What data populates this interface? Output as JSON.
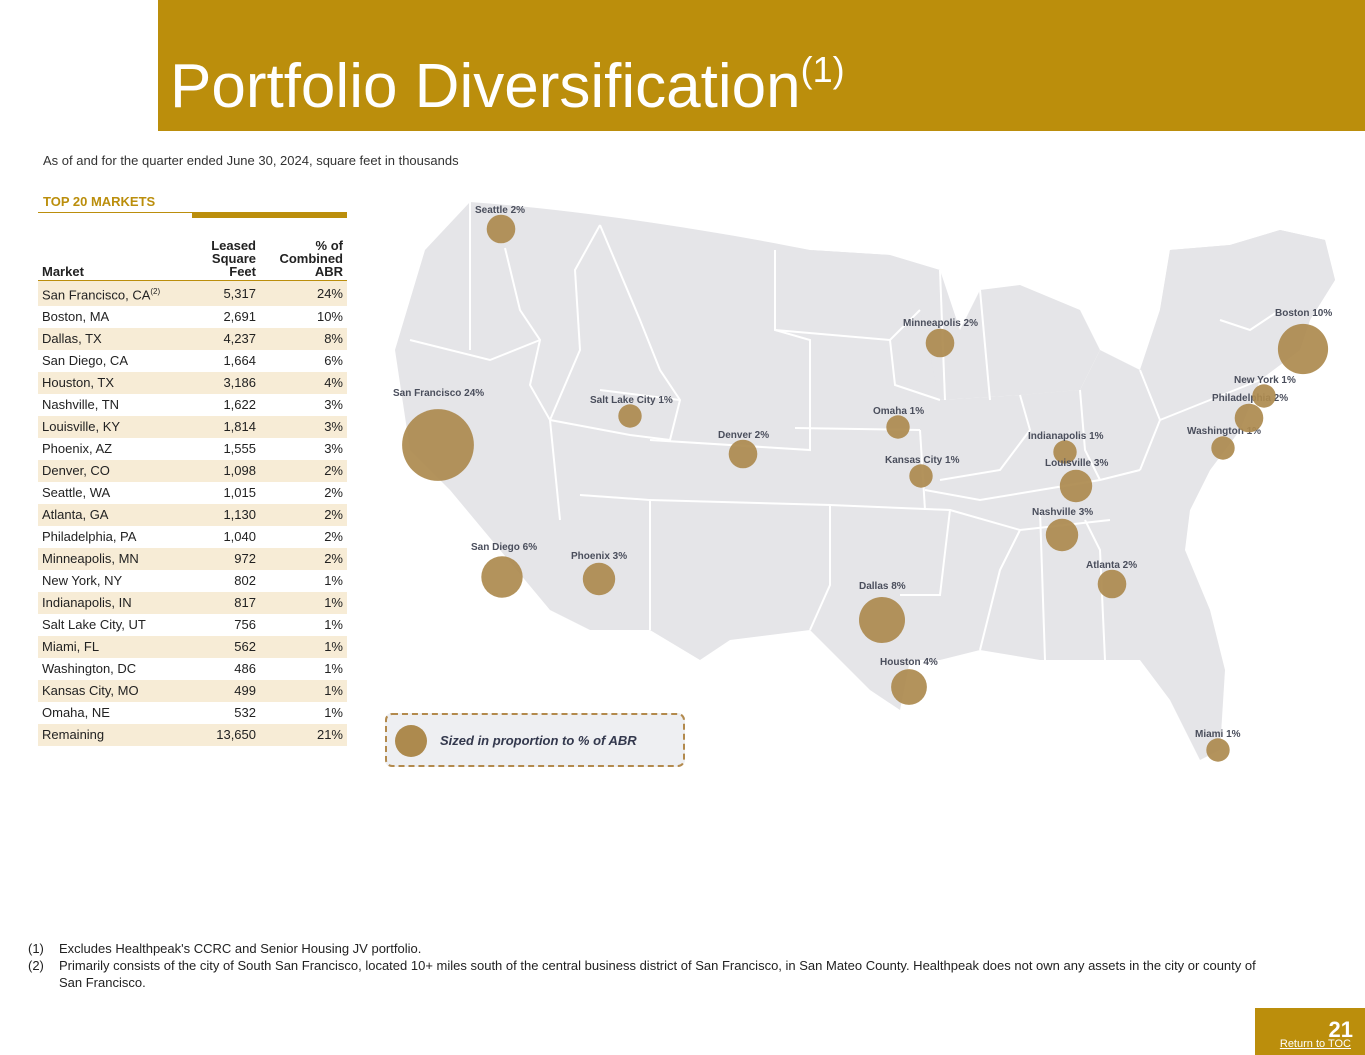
{
  "header": {
    "title": "Portfolio Diversification",
    "title_sup": "(1)"
  },
  "subtitle": "As of and for the quarter ended June 30, 2024, square feet in thousands",
  "table": {
    "heading": "TOP 20 MARKETS",
    "columns": {
      "market": "Market",
      "sqft": "Leased Square Feet",
      "abr": "% of Combined ABR"
    },
    "rows": [
      {
        "market": "San Francisco, CA",
        "note": "(2)",
        "sqft": "5,317",
        "abr": "24%"
      },
      {
        "market": "Boston, MA",
        "sqft": "2,691",
        "abr": "10%"
      },
      {
        "market": "Dallas, TX",
        "sqft": "4,237",
        "abr": "8%"
      },
      {
        "market": "San Diego, CA",
        "sqft": "1,664",
        "abr": "6%"
      },
      {
        "market": "Houston, TX",
        "sqft": "3,186",
        "abr": "4%"
      },
      {
        "market": "Nashville, TN",
        "sqft": "1,622",
        "abr": "3%"
      },
      {
        "market": "Louisville, KY",
        "sqft": "1,814",
        "abr": "3%"
      },
      {
        "market": "Phoenix, AZ",
        "sqft": "1,555",
        "abr": "3%"
      },
      {
        "market": "Denver, CO",
        "sqft": "1,098",
        "abr": "2%"
      },
      {
        "market": "Seattle, WA",
        "sqft": "1,015",
        "abr": "2%"
      },
      {
        "market": "Atlanta, GA",
        "sqft": "1,130",
        "abr": "2%"
      },
      {
        "market": "Philadelphia, PA",
        "sqft": "1,040",
        "abr": "2%"
      },
      {
        "market": "Minneapolis, MN",
        "sqft": "972",
        "abr": "2%"
      },
      {
        "market": "New York, NY",
        "sqft": "802",
        "abr": "1%"
      },
      {
        "market": "Indianapolis, IN",
        "sqft": "817",
        "abr": "1%"
      },
      {
        "market": "Salt Lake City, UT",
        "sqft": "756",
        "abr": "1%"
      },
      {
        "market": "Miami, FL",
        "sqft": "562",
        "abr": "1%"
      },
      {
        "market": "Washington, DC",
        "sqft": "486",
        "abr": "1%"
      },
      {
        "market": "Kansas City, MO",
        "sqft": "499",
        "abr": "1%"
      },
      {
        "market": "Omaha, NE",
        "sqft": "532",
        "abr": "1%"
      },
      {
        "market": "Remaining",
        "sqft": "13,650",
        "abr": "21%"
      }
    ]
  },
  "map": {
    "markers": [
      {
        "label": "Seattle 2%",
        "abr": 2
      },
      {
        "label": "San Francisco 24%",
        "abr": 24
      },
      {
        "label": "San Diego 6%",
        "abr": 6
      },
      {
        "label": "Phoenix 3%",
        "abr": 3
      },
      {
        "label": "Salt Lake City 1%",
        "abr": 1
      },
      {
        "label": "Denver 2%",
        "abr": 2
      },
      {
        "label": "Minneapolis 2%",
        "abr": 2
      },
      {
        "label": "Omaha 1%",
        "abr": 1
      },
      {
        "label": "Kansas City 1%",
        "abr": 1
      },
      {
        "label": "Dallas 8%",
        "abr": 8
      },
      {
        "label": "Houston 4%",
        "abr": 4
      },
      {
        "label": "Indianapolis 1%",
        "abr": 1
      },
      {
        "label": "Louisville 3%",
        "abr": 3
      },
      {
        "label": "Nashville 3%",
        "abr": 3
      },
      {
        "label": "Atlanta 2%",
        "abr": 2
      },
      {
        "label": "Miami 1%",
        "abr": 1
      },
      {
        "label": "Washington 1%",
        "abr": 1
      },
      {
        "label": "Philadelphia 2%",
        "abr": 2
      },
      {
        "label": "New York 1%",
        "abr": 1
      },
      {
        "label": "Boston 10%",
        "abr": 10
      }
    ],
    "legend": "Sized in proportion to % of ABR",
    "marker_color": "#ad8a4e",
    "land_color": "#e5e5e8"
  },
  "footnotes": [
    {
      "num": "(1)",
      "text": "Excludes Healthpeak's CCRC and Senior Housing JV portfolio."
    },
    {
      "num": "(2)",
      "text": "Primarily consists of the city of South San Francisco, located 10+ miles south of the central business district of San Francisco, in San Mateo County. Healthpeak does not own any assets in the city or county of San Francisco."
    }
  ],
  "footer": {
    "page_number": "21",
    "toc_link": "Return to TOC"
  },
  "colors": {
    "gold": "#bb8e0c",
    "row_alt": "#f7ecd6"
  }
}
